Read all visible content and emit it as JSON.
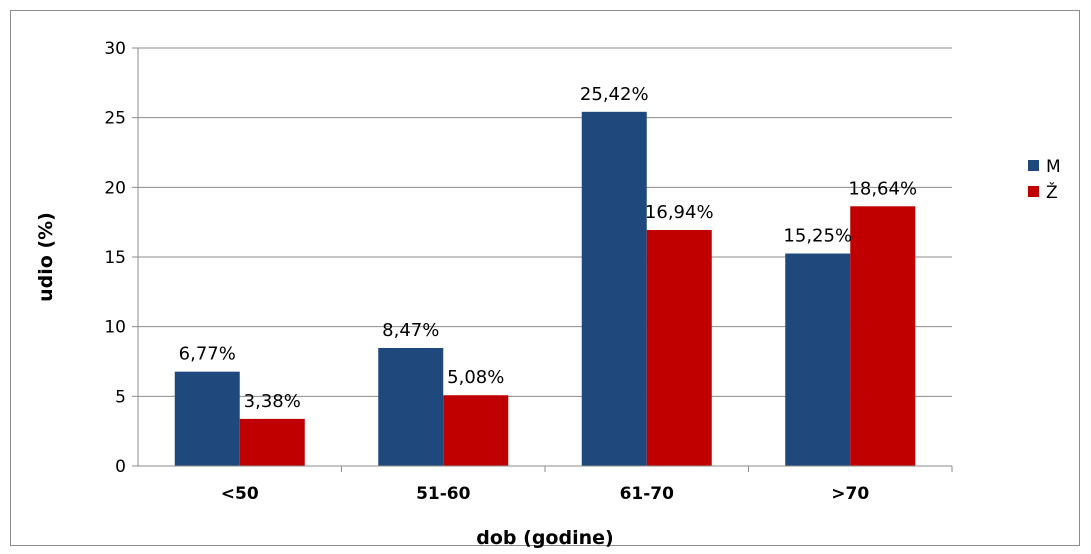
{
  "chart_data": {
    "type": "bar",
    "categories": [
      "<50",
      "51-60",
      "61-70",
      ">70"
    ],
    "series": [
      {
        "name": "M",
        "color": "#1f497d",
        "values": [
          6.77,
          8.47,
          25.42,
          15.25
        ],
        "labels": [
          "6,77%",
          "8,47%",
          "25,42%",
          "15,25%"
        ]
      },
      {
        "name": "Ž",
        "color": "#c00000",
        "values": [
          3.38,
          5.08,
          16.94,
          18.64
        ],
        "labels": [
          "3,38%",
          "5,08%",
          "16,94%",
          "18,64%"
        ]
      }
    ],
    "xlabel": "dob (godine)",
    "ylabel": "udio (%)",
    "ylim": [
      0,
      30
    ],
    "yticks": [
      0,
      5,
      10,
      15,
      20,
      25,
      30
    ],
    "grid": true,
    "legend": "right"
  }
}
